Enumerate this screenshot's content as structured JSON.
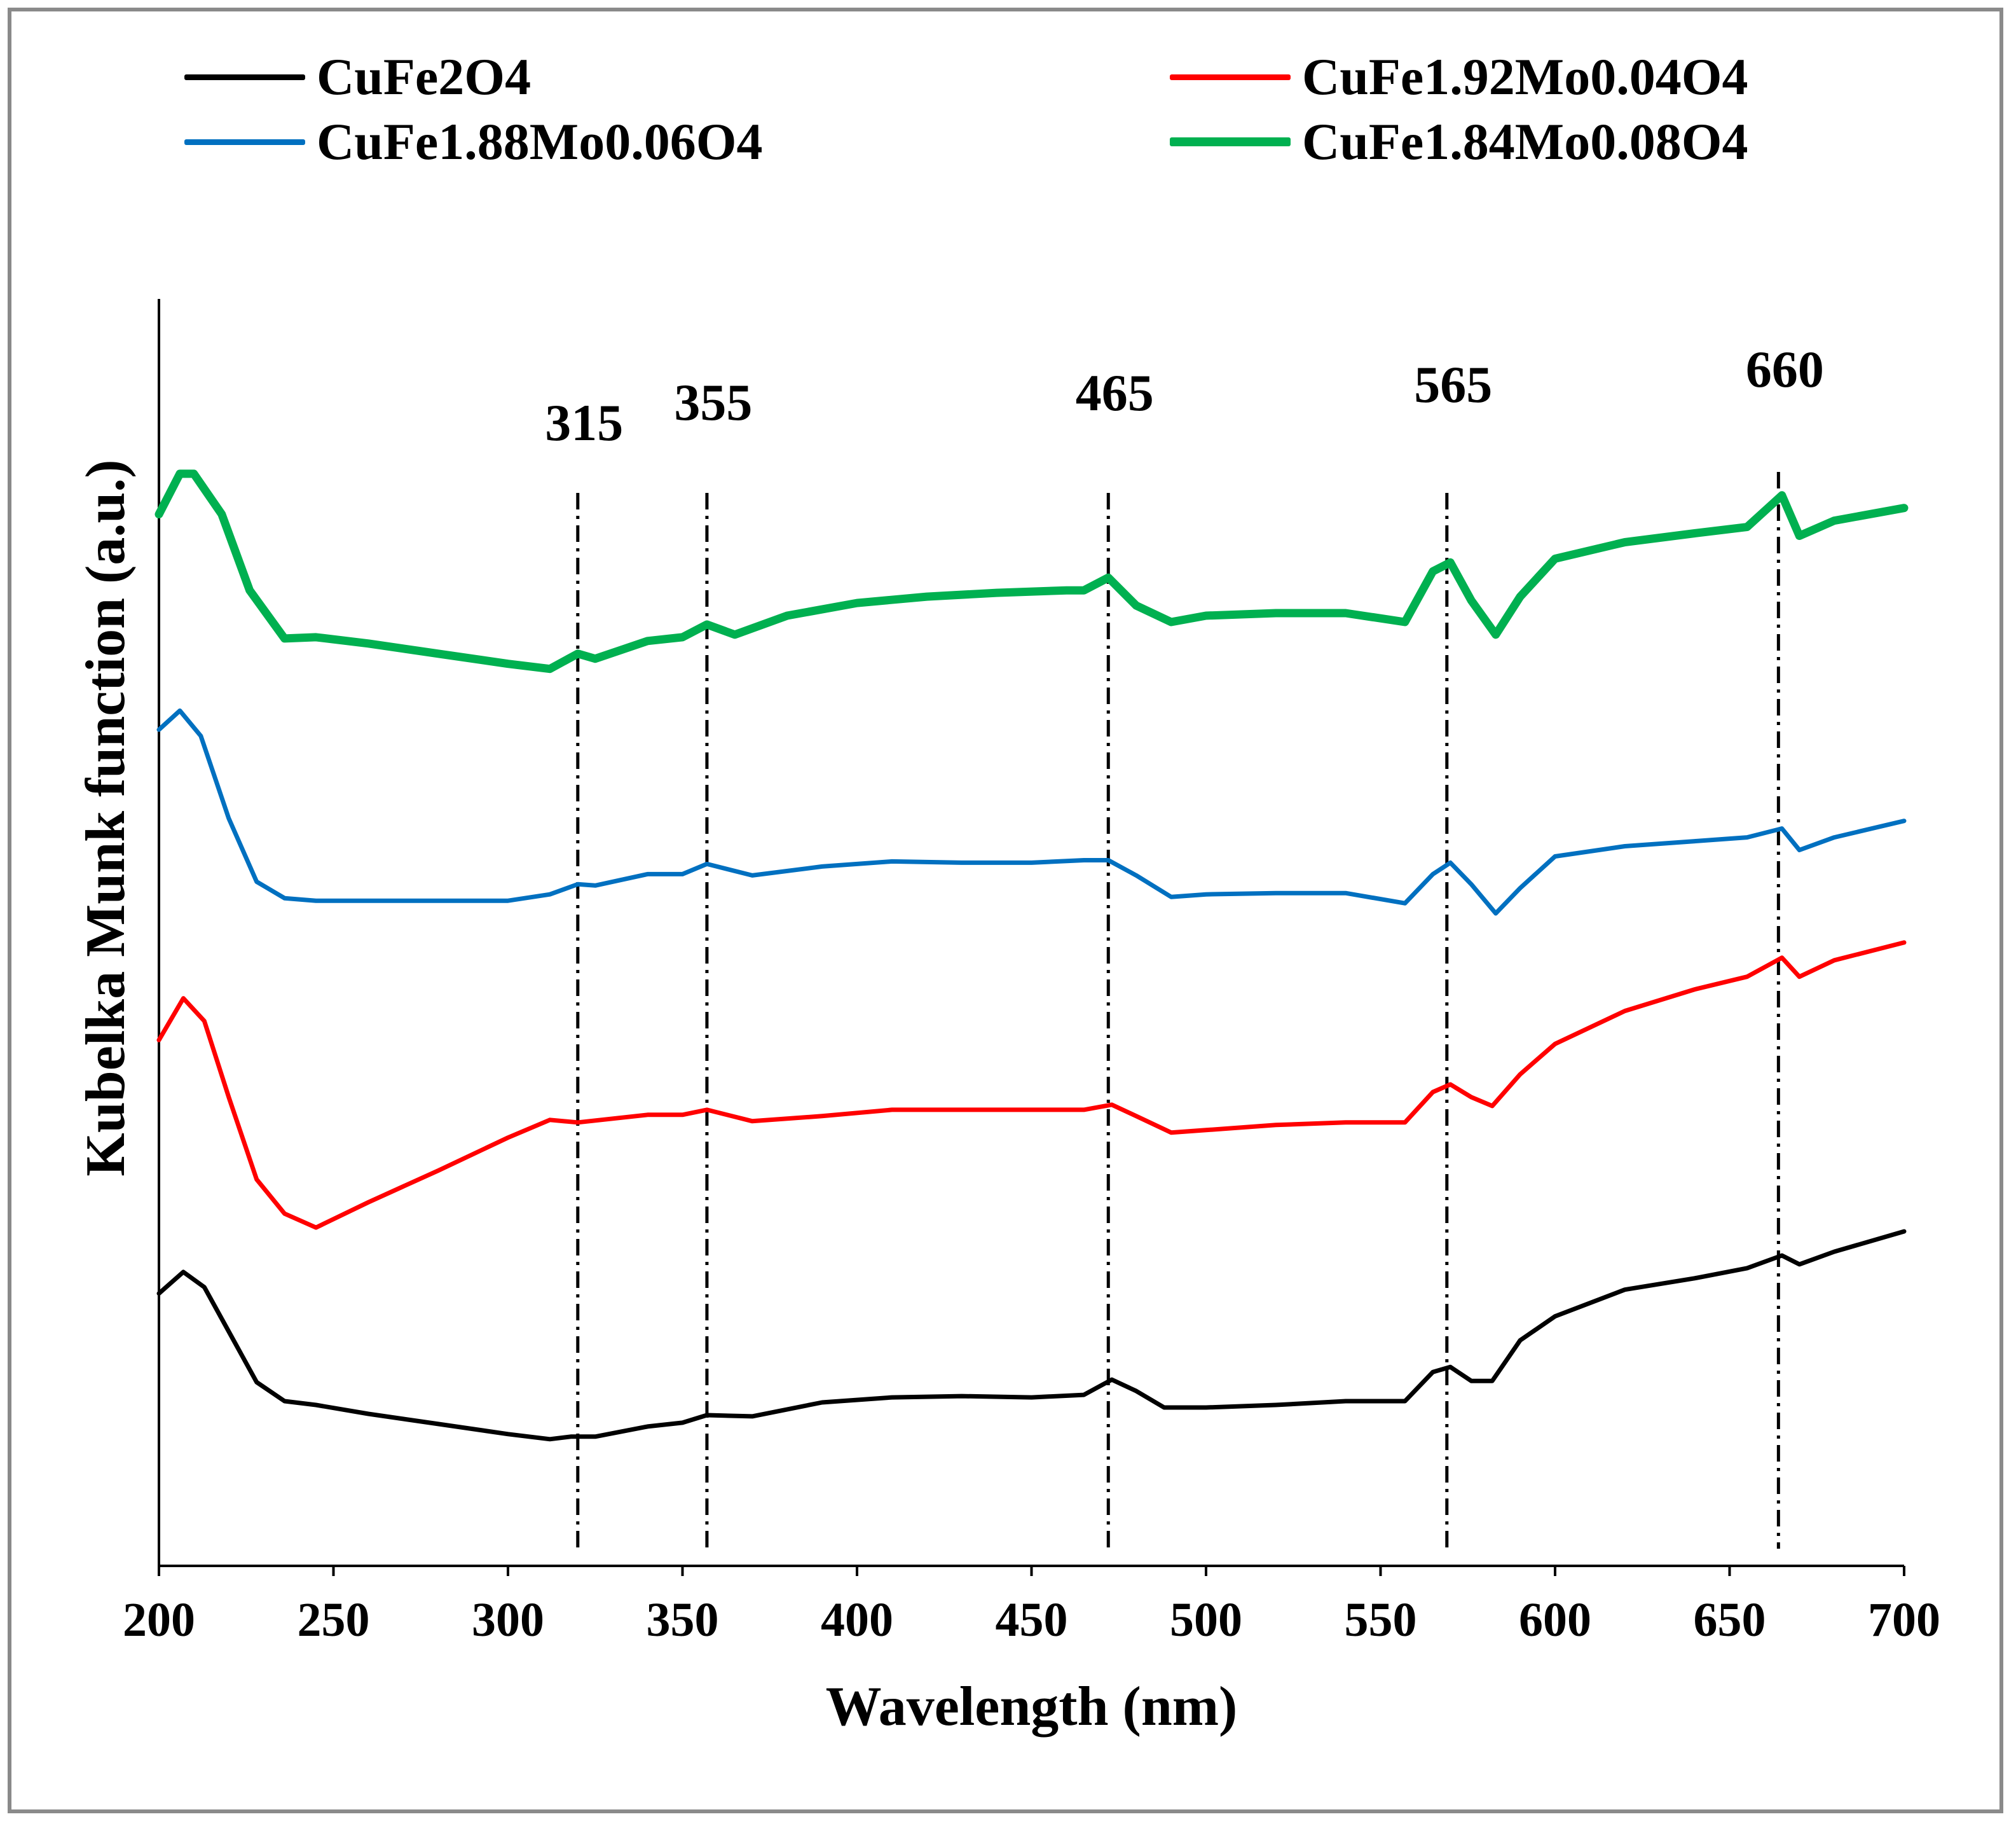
{
  "chart_data": {
    "type": "line",
    "title": "",
    "xlabel": "Wavelength (nm)",
    "ylabel": "Kubelka Munk function (a.u.)",
    "xlim": [
      200,
      700
    ],
    "ylim": [
      0,
      10
    ],
    "x_ticks": [
      "200",
      "250",
      "300",
      "350",
      "400",
      "450",
      "500",
      "550",
      "600",
      "650",
      "700"
    ],
    "legend_placement": "top",
    "legend": [
      "CuFe2O4",
      "CuFe1.92Mo0.04O4",
      "CuFe1.88Mo0.06O4",
      "CuFe1.84Mo0.08O4"
    ],
    "annotations": [
      {
        "x": 320,
        "label": "315"
      },
      {
        "x": 357,
        "label": "355"
      },
      {
        "x": 472,
        "label": "465"
      },
      {
        "x": 569,
        "label": "565"
      },
      {
        "x": 664,
        "label": "660"
      }
    ],
    "series": [
      {
        "name": "CuFe2O4",
        "color": "#000000",
        "x": [
          200,
          207,
          213,
          220,
          228,
          236,
          245,
          260,
          280,
          300,
          312,
          318,
          325,
          340,
          350,
          357,
          370,
          390,
          410,
          430,
          450,
          465,
          473,
          480,
          488,
          500,
          520,
          540,
          557,
          565,
          570,
          576,
          582,
          590,
          600,
          620,
          640,
          655,
          665,
          670,
          680,
          700
        ],
        "y": [
          2.15,
          2.32,
          2.2,
          1.85,
          1.45,
          1.3,
          1.27,
          1.2,
          1.12,
          1.04,
          1.0,
          1.02,
          1.02,
          1.1,
          1.13,
          1.19,
          1.18,
          1.29,
          1.33,
          1.34,
          1.33,
          1.35,
          1.47,
          1.38,
          1.25,
          1.25,
          1.27,
          1.3,
          1.3,
          1.53,
          1.57,
          1.46,
          1.46,
          1.78,
          1.97,
          2.18,
          2.27,
          2.35,
          2.45,
          2.38,
          2.48,
          2.64
        ]
      },
      {
        "name": "CuFe1.92Mo0.04O4",
        "color": "#ff0000",
        "x": [
          200,
          207,
          213,
          220,
          228,
          236,
          245,
          260,
          280,
          300,
          312,
          320,
          330,
          340,
          350,
          357,
          370,
          390,
          410,
          430,
          450,
          465,
          473,
          480,
          490,
          500,
          520,
          540,
          557,
          565,
          570,
          576,
          582,
          590,
          600,
          620,
          640,
          655,
          665,
          670,
          680,
          700
        ],
        "y": [
          4.15,
          4.48,
          4.3,
          3.7,
          3.05,
          2.78,
          2.67,
          2.87,
          3.12,
          3.38,
          3.52,
          3.5,
          3.53,
          3.56,
          3.56,
          3.6,
          3.51,
          3.55,
          3.6,
          3.6,
          3.6,
          3.6,
          3.64,
          3.55,
          3.42,
          3.44,
          3.48,
          3.5,
          3.5,
          3.74,
          3.8,
          3.7,
          3.63,
          3.88,
          4.12,
          4.38,
          4.55,
          4.65,
          4.8,
          4.65,
          4.78,
          4.92
        ]
      },
      {
        "name": "CuFe1.88Mo0.06O4",
        "color": "#0070c0",
        "x": [
          200,
          206,
          212,
          220,
          228,
          236,
          245,
          260,
          280,
          300,
          312,
          320,
          325,
          340,
          350,
          357,
          370,
          390,
          410,
          430,
          450,
          465,
          472,
          480,
          490,
          500,
          520,
          540,
          557,
          565,
          570,
          576,
          583,
          590,
          600,
          620,
          640,
          655,
          665,
          670,
          680,
          700
        ],
        "y": [
          6.6,
          6.75,
          6.55,
          5.9,
          5.4,
          5.27,
          5.25,
          5.25,
          5.25,
          5.25,
          5.3,
          5.38,
          5.37,
          5.46,
          5.46,
          5.54,
          5.45,
          5.52,
          5.56,
          5.55,
          5.55,
          5.57,
          5.57,
          5.45,
          5.28,
          5.3,
          5.31,
          5.31,
          5.23,
          5.46,
          5.55,
          5.38,
          5.15,
          5.35,
          5.6,
          5.68,
          5.72,
          5.75,
          5.82,
          5.65,
          5.75,
          5.88
        ]
      },
      {
        "name": "CuFe1.84Mo0.08O4",
        "color": "#00b050",
        "x": [
          200,
          206,
          210,
          218,
          226,
          236,
          245,
          260,
          280,
          300,
          312,
          320,
          325,
          340,
          350,
          357,
          365,
          380,
          400,
          420,
          440,
          460,
          465,
          472,
          480,
          490,
          500,
          520,
          540,
          557,
          565,
          570,
          576,
          583,
          590,
          600,
          620,
          640,
          655,
          665,
          670,
          680,
          700
        ],
        "y": [
          8.3,
          8.62,
          8.62,
          8.3,
          7.7,
          7.32,
          7.33,
          7.28,
          7.2,
          7.12,
          7.08,
          7.2,
          7.16,
          7.3,
          7.33,
          7.43,
          7.35,
          7.5,
          7.6,
          7.65,
          7.68,
          7.7,
          7.7,
          7.8,
          7.58,
          7.45,
          7.5,
          7.52,
          7.52,
          7.45,
          7.85,
          7.92,
          7.62,
          7.35,
          7.65,
          7.95,
          8.08,
          8.15,
          8.2,
          8.45,
          8.13,
          8.25,
          8.35
        ]
      }
    ]
  }
}
